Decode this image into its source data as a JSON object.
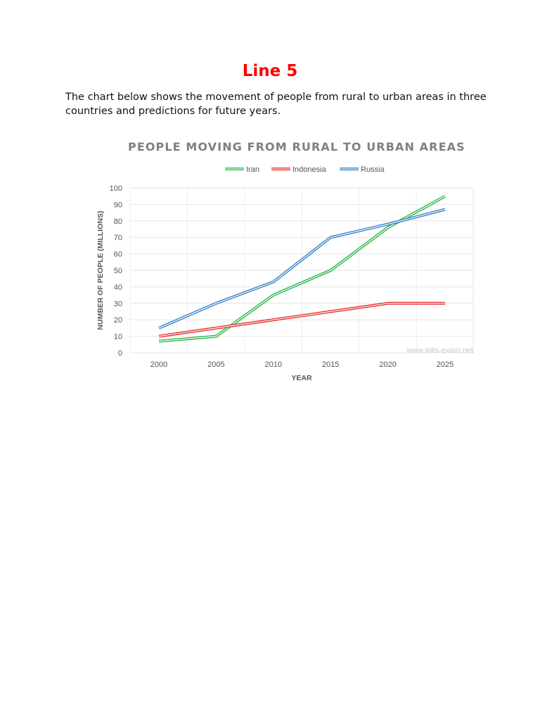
{
  "page": {
    "title": "Line 5",
    "description": "The chart below shows the movement of people from rural to urban areas in three countries and predictions for future years."
  },
  "chart_data": {
    "type": "line",
    "title": "PEOPLE MOVING FROM RURAL TO URBAN AREAS",
    "xlabel": "YEAR",
    "ylabel": "NUMBER OF PEOPLE (MILLIONS)",
    "categories": [
      "2000",
      "2005",
      "2010",
      "2015",
      "2020",
      "2025"
    ],
    "ylim": [
      0,
      100
    ],
    "yticks": [
      0,
      10,
      20,
      30,
      40,
      50,
      60,
      70,
      80,
      90,
      100
    ],
    "grid": true,
    "legend_position": "top",
    "watermark": "www.ielts-exam.net",
    "series": [
      {
        "name": "Iran",
        "color": "#2db84d",
        "values": [
          7,
          10,
          35,
          50,
          76,
          95
        ]
      },
      {
        "name": "Indonesia",
        "color": "#e63232",
        "values": [
          10,
          15,
          20,
          25,
          30,
          30
        ]
      },
      {
        "name": "Russia",
        "color": "#3a85c8",
        "values": [
          15,
          30,
          43,
          70,
          78,
          87
        ]
      }
    ]
  }
}
